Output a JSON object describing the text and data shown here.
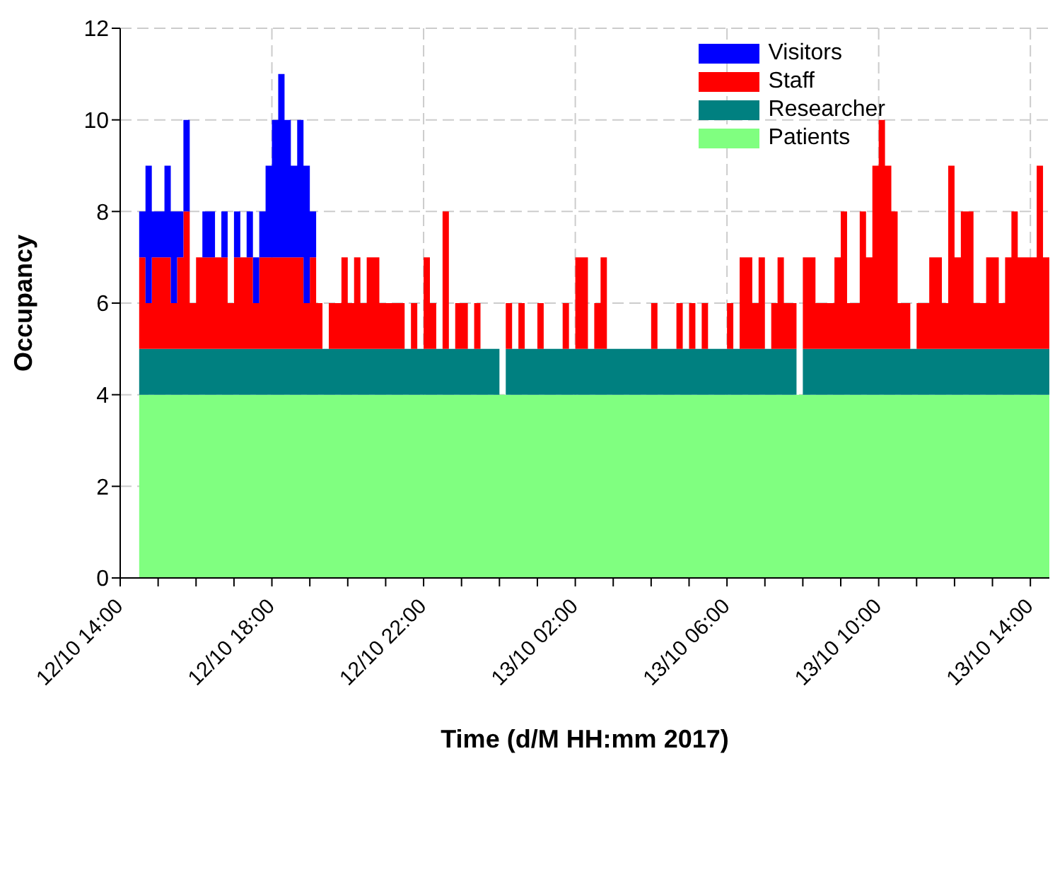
{
  "chart_data": {
    "type": "area",
    "stacked": true,
    "xlabel": "Time (d/M HH:mm 2017)",
    "ylabel": "Occupancy",
    "x": [
      "2017-10-12T14:30",
      "2017-10-12T14:40",
      "2017-10-12T14:50",
      "2017-10-12T15:00",
      "2017-10-12T15:10",
      "2017-10-12T15:20",
      "2017-10-12T15:30",
      "2017-10-12T15:40",
      "2017-10-12T15:50",
      "2017-10-12T16:00",
      "2017-10-12T16:10",
      "2017-10-12T16:20",
      "2017-10-12T16:30",
      "2017-10-12T16:40",
      "2017-10-12T16:50",
      "2017-10-12T17:00",
      "2017-10-12T17:10",
      "2017-10-12T17:20",
      "2017-10-12T17:30",
      "2017-10-12T17:40",
      "2017-10-12T17:50",
      "2017-10-12T18:00",
      "2017-10-12T18:10",
      "2017-10-12T18:20",
      "2017-10-12T18:30",
      "2017-10-12T18:40",
      "2017-10-12T18:50",
      "2017-10-12T19:00",
      "2017-10-12T19:10",
      "2017-10-12T19:20",
      "2017-10-12T19:30",
      "2017-10-12T19:40",
      "2017-10-12T19:50",
      "2017-10-12T20:00",
      "2017-10-12T20:10",
      "2017-10-12T20:20",
      "2017-10-12T20:30",
      "2017-10-12T20:40",
      "2017-10-12T20:50",
      "2017-10-12T21:00",
      "2017-10-12T21:10",
      "2017-10-12T21:20",
      "2017-10-12T21:30",
      "2017-10-12T21:40",
      "2017-10-12T21:50",
      "2017-10-12T22:00",
      "2017-10-12T22:10",
      "2017-10-12T22:20",
      "2017-10-12T22:30",
      "2017-10-12T22:40",
      "2017-10-12T22:50",
      "2017-10-12T23:00",
      "2017-10-12T23:10",
      "2017-10-12T23:20",
      "2017-10-12T23:30",
      "2017-10-12T23:40",
      "2017-10-12T23:50",
      "2017-10-13T00:00",
      "2017-10-13T00:10",
      "2017-10-13T00:20",
      "2017-10-13T00:30",
      "2017-10-13T00:40",
      "2017-10-13T00:50",
      "2017-10-13T01:00",
      "2017-10-13T01:10",
      "2017-10-13T01:20",
      "2017-10-13T01:30",
      "2017-10-13T01:40",
      "2017-10-13T01:50",
      "2017-10-13T02:00",
      "2017-10-13T02:10",
      "2017-10-13T02:20",
      "2017-10-13T02:30",
      "2017-10-13T02:40",
      "2017-10-13T02:50",
      "2017-10-13T03:00",
      "2017-10-13T03:10",
      "2017-10-13T03:20",
      "2017-10-13T03:30",
      "2017-10-13T03:40",
      "2017-10-13T03:50",
      "2017-10-13T04:00",
      "2017-10-13T04:10",
      "2017-10-13T04:20",
      "2017-10-13T04:30",
      "2017-10-13T04:40",
      "2017-10-13T04:50",
      "2017-10-13T05:00",
      "2017-10-13T05:10",
      "2017-10-13T05:20",
      "2017-10-13T05:30",
      "2017-10-13T05:40",
      "2017-10-13T05:50",
      "2017-10-13T06:00",
      "2017-10-13T06:10",
      "2017-10-13T06:20",
      "2017-10-13T06:30",
      "2017-10-13T06:40",
      "2017-10-13T06:50",
      "2017-10-13T07:00",
      "2017-10-13T07:10",
      "2017-10-13T07:20",
      "2017-10-13T07:30",
      "2017-10-13T07:40",
      "2017-10-13T07:50",
      "2017-10-13T08:00",
      "2017-10-13T08:10",
      "2017-10-13T08:20",
      "2017-10-13T08:30",
      "2017-10-13T08:40",
      "2017-10-13T08:50",
      "2017-10-13T09:00",
      "2017-10-13T09:10",
      "2017-10-13T09:20",
      "2017-10-13T09:30",
      "2017-10-13T09:40",
      "2017-10-13T09:50",
      "2017-10-13T10:00",
      "2017-10-13T10:10",
      "2017-10-13T10:20",
      "2017-10-13T10:30",
      "2017-10-13T10:40",
      "2017-10-13T10:50",
      "2017-10-13T11:00",
      "2017-10-13T11:10",
      "2017-10-13T11:20",
      "2017-10-13T11:30",
      "2017-10-13T11:40",
      "2017-10-13T11:50",
      "2017-10-13T12:00",
      "2017-10-13T12:10",
      "2017-10-13T12:20",
      "2017-10-13T12:30",
      "2017-10-13T12:40",
      "2017-10-13T12:50",
      "2017-10-13T13:00",
      "2017-10-13T13:10",
      "2017-10-13T13:20",
      "2017-10-13T13:30",
      "2017-10-13T13:40",
      "2017-10-13T13:50",
      "2017-10-13T14:00",
      "2017-10-13T14:10",
      "2017-10-13T14:20",
      "2017-10-13T14:30"
    ],
    "series": [
      {
        "name": "Patients",
        "color": "#80ff80",
        "values": [
          4,
          4,
          4,
          4,
          4,
          4,
          4,
          4,
          4,
          4,
          4,
          4,
          4,
          4,
          4,
          4,
          4,
          4,
          4,
          4,
          4,
          4,
          4,
          4,
          4,
          4,
          4,
          4,
          4,
          4,
          4,
          4,
          4,
          4,
          4,
          4,
          4,
          4,
          4,
          4,
          4,
          4,
          4,
          4,
          4,
          4,
          4,
          4,
          4,
          4,
          4,
          4,
          4,
          4,
          4,
          4,
          4,
          4,
          4,
          4,
          4,
          4,
          4,
          4,
          4,
          4,
          4,
          4,
          4,
          4,
          4,
          4,
          4,
          4,
          4,
          4,
          4,
          4,
          4,
          4,
          4,
          4,
          4,
          4,
          4,
          4,
          4,
          4,
          4,
          4,
          4,
          4,
          4,
          4,
          4,
          4,
          4,
          4,
          4,
          4,
          4,
          4,
          4,
          4,
          4,
          4,
          4,
          4,
          4,
          4,
          4,
          4,
          4,
          4,
          4,
          4,
          4,
          4,
          4,
          4,
          4,
          4,
          4,
          4,
          4,
          4,
          4,
          4,
          4,
          4,
          4,
          4,
          4,
          4,
          4,
          4,
          4,
          4,
          4,
          4,
          4,
          4,
          4,
          4,
          4
        ]
      },
      {
        "name": "Researcher",
        "color": "#008080",
        "values": [
          1,
          1,
          1,
          1,
          1,
          1,
          1,
          1,
          1,
          1,
          1,
          1,
          1,
          1,
          1,
          1,
          1,
          1,
          1,
          1,
          1,
          1,
          1,
          1,
          1,
          1,
          1,
          1,
          1,
          1,
          1,
          1,
          1,
          1,
          1,
          1,
          1,
          1,
          1,
          1,
          1,
          1,
          1,
          1,
          1,
          1,
          1,
          1,
          1,
          1,
          1,
          1,
          1,
          1,
          1,
          1,
          1,
          0,
          1,
          1,
          1,
          1,
          1,
          1,
          1,
          1,
          1,
          1,
          1,
          1,
          1,
          1,
          1,
          1,
          1,
          1,
          1,
          1,
          1,
          1,
          1,
          1,
          1,
          1,
          1,
          1,
          1,
          1,
          1,
          1,
          1,
          1,
          1,
          1,
          1,
          1,
          1,
          1,
          1,
          1,
          1,
          1,
          1,
          1,
          0,
          1,
          1,
          1,
          1,
          1,
          1,
          1,
          1,
          1,
          1,
          1,
          1,
          1,
          1,
          1,
          1,
          1,
          1,
          1,
          1,
          1,
          1,
          1,
          1,
          1,
          1,
          1,
          1,
          1,
          1,
          1,
          1,
          1,
          1,
          1,
          1,
          1,
          1,
          1,
          1
        ]
      },
      {
        "name": "Staff",
        "color": "#ff0000",
        "values": [
          2,
          1,
          2,
          2,
          2,
          1,
          2,
          3,
          1,
          2,
          2,
          2,
          2,
          2,
          1,
          2,
          2,
          2,
          1,
          2,
          2,
          2,
          2,
          2,
          2,
          2,
          1,
          2,
          1,
          0,
          1,
          1,
          2,
          1,
          2,
          1,
          2,
          2,
          1,
          1,
          1,
          1,
          0,
          1,
          0,
          2,
          1,
          0,
          3,
          0,
          1,
          1,
          0,
          1,
          0,
          0,
          0,
          0,
          1,
          0,
          1,
          0,
          0,
          1,
          0,
          0,
          0,
          1,
          0,
          2,
          2,
          0,
          1,
          2,
          0,
          0,
          0,
          0,
          0,
          0,
          0,
          1,
          0,
          0,
          0,
          1,
          0,
          1,
          0,
          1,
          0,
          0,
          0,
          1,
          0,
          2,
          2,
          1,
          2,
          0,
          1,
          2,
          1,
          1,
          0,
          2,
          2,
          1,
          1,
          1,
          2,
          3,
          1,
          1,
          3,
          2,
          4,
          5,
          4,
          3,
          1,
          1,
          0,
          1,
          1,
          2,
          2,
          1,
          4,
          2,
          3,
          3,
          1,
          1,
          2,
          2,
          1,
          2,
          3,
          2,
          2,
          2,
          4,
          2,
          2
        ]
      },
      {
        "name": "Visitors",
        "color": "#0000ff",
        "values": [
          1,
          3,
          1,
          1,
          2,
          2,
          1,
          2,
          0,
          0,
          1,
          1,
          0,
          1,
          0,
          1,
          0,
          1,
          1,
          1,
          2,
          3,
          4,
          3,
          2,
          3,
          3,
          1,
          0,
          0,
          0,
          0,
          0,
          0,
          0,
          0,
          0,
          0,
          0,
          0,
          0,
          0,
          0,
          0,
          0,
          0,
          0,
          0,
          0,
          0,
          0,
          0,
          0,
          0,
          0,
          0,
          0,
          0,
          0,
          0,
          0,
          0,
          0,
          0,
          0,
          0,
          0,
          0,
          0,
          0,
          0,
          0,
          0,
          0,
          0,
          0,
          0,
          0,
          0,
          0,
          0,
          0,
          0,
          0,
          0,
          0,
          0,
          0,
          0,
          0,
          0,
          0,
          0,
          0,
          0,
          0,
          0,
          0,
          0,
          0,
          0,
          0,
          0,
          0,
          0,
          0,
          0,
          0,
          0,
          0,
          0,
          0,
          0,
          0,
          0,
          0,
          0,
          0,
          0,
          0,
          0,
          0,
          0,
          0,
          0,
          0,
          0,
          0,
          0,
          0,
          0,
          0,
          0,
          0,
          0,
          0,
          0,
          0,
          0,
          0,
          0,
          0,
          0,
          0,
          0
        ]
      }
    ],
    "xlim": [
      "2017-10-12T14:00",
      "2017-10-13T14:30"
    ],
    "xticks": [
      {
        "value": "2017-10-12T14:00",
        "label": "12/10 14:00"
      },
      {
        "value": "2017-10-12T15:00",
        "label": null
      },
      {
        "value": "2017-10-12T16:00",
        "label": null
      },
      {
        "value": "2017-10-12T17:00",
        "label": null
      },
      {
        "value": "2017-10-12T18:00",
        "label": "12/10 18:00"
      },
      {
        "value": "2017-10-12T19:00",
        "label": null
      },
      {
        "value": "2017-10-12T20:00",
        "label": null
      },
      {
        "value": "2017-10-12T21:00",
        "label": null
      },
      {
        "value": "2017-10-12T22:00",
        "label": "12/10 22:00"
      },
      {
        "value": "2017-10-12T23:00",
        "label": null
      },
      {
        "value": "2017-10-13T00:00",
        "label": null
      },
      {
        "value": "2017-10-13T01:00",
        "label": null
      },
      {
        "value": "2017-10-13T02:00",
        "label": "13/10 02:00"
      },
      {
        "value": "2017-10-13T03:00",
        "label": null
      },
      {
        "value": "2017-10-13T04:00",
        "label": null
      },
      {
        "value": "2017-10-13T05:00",
        "label": null
      },
      {
        "value": "2017-10-13T06:00",
        "label": "13/10 06:00"
      },
      {
        "value": "2017-10-13T07:00",
        "label": null
      },
      {
        "value": "2017-10-13T08:00",
        "label": null
      },
      {
        "value": "2017-10-13T09:00",
        "label": null
      },
      {
        "value": "2017-10-13T10:00",
        "label": "13/10 10:00"
      },
      {
        "value": "2017-10-13T11:00",
        "label": null
      },
      {
        "value": "2017-10-13T12:00",
        "label": null
      },
      {
        "value": "2017-10-13T13:00",
        "label": null
      },
      {
        "value": "2017-10-13T14:00",
        "label": "13/10 14:00"
      }
    ],
    "ylim": [
      0,
      12
    ],
    "yticks": [
      0,
      2,
      4,
      6,
      8,
      10,
      12
    ],
    "grid": true,
    "legend": "top right"
  }
}
